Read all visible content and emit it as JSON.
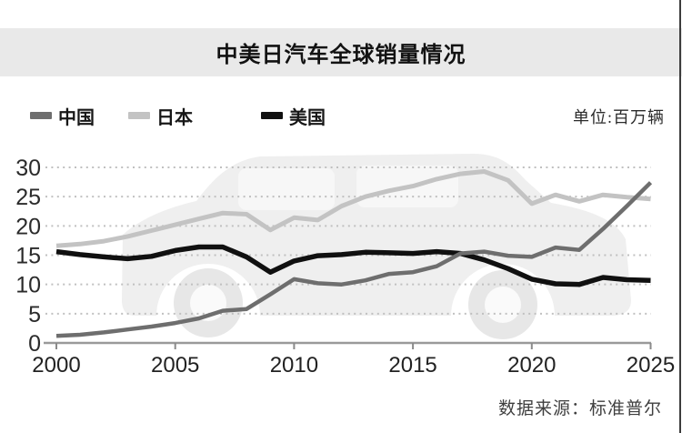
{
  "title": "中美日汽车全球销量情况",
  "unit_label": "单位:百万辆",
  "source_label": "数据来源：标准普尔",
  "legend": [
    {
      "label": "中国",
      "color": "#6e6e6e"
    },
    {
      "label": "日本",
      "color": "#c3c3c3"
    },
    {
      "label": "美国",
      "color": "#101010"
    }
  ],
  "chart_data": {
    "type": "line",
    "title": "中美日汽车全球销量情况",
    "unit": "百万辆",
    "source": "标准普尔",
    "x": [
      2000,
      2001,
      2002,
      2003,
      2004,
      2005,
      2006,
      2007,
      2008,
      2009,
      2010,
      2011,
      2012,
      2013,
      2014,
      2015,
      2016,
      2017,
      2018,
      2019,
      2020,
      2021,
      2022,
      2023,
      2024,
      2025
    ],
    "series": [
      {
        "name": "中国",
        "color": "#6e6e6e",
        "width": 4.5,
        "values": [
          1.2,
          1.4,
          1.8,
          2.3,
          2.8,
          3.4,
          4.2,
          5.5,
          5.8,
          8.3,
          10.9,
          10.2,
          10.0,
          10.7,
          11.8,
          12.1,
          13.1,
          15.3,
          15.6,
          14.9,
          14.7,
          16.3,
          15.9,
          19.5,
          23.4,
          27.4
        ]
      },
      {
        "name": "日本",
        "color": "#c3c3c3",
        "width": 5,
        "values": [
          16.6,
          16.9,
          17.4,
          18.2,
          19.2,
          20.2,
          21.2,
          22.2,
          22.0,
          19.3,
          21.4,
          21.0,
          23.4,
          25.0,
          26.0,
          26.8,
          28.0,
          28.9,
          29.3,
          27.8,
          23.8,
          25.3,
          24.2,
          25.3,
          24.9,
          24.6
        ]
      },
      {
        "name": "美国",
        "color": "#101010",
        "width": 5.5,
        "values": [
          15.6,
          15.1,
          14.7,
          14.4,
          14.8,
          15.8,
          16.4,
          16.4,
          14.7,
          12.1,
          14.0,
          14.9,
          15.1,
          15.5,
          15.4,
          15.3,
          15.6,
          15.3,
          14.2,
          12.7,
          10.9,
          10.1,
          10.0,
          11.2,
          10.8,
          10.7
        ]
      }
    ],
    "xticks": [
      2000,
      2005,
      2010,
      2015,
      2020,
      2025
    ],
    "yticks": [
      0,
      5,
      10,
      15,
      20,
      25,
      30
    ],
    "ylim": [
      0,
      30
    ],
    "grid": "horizontal-dotted",
    "legend_position": "top-left"
  }
}
